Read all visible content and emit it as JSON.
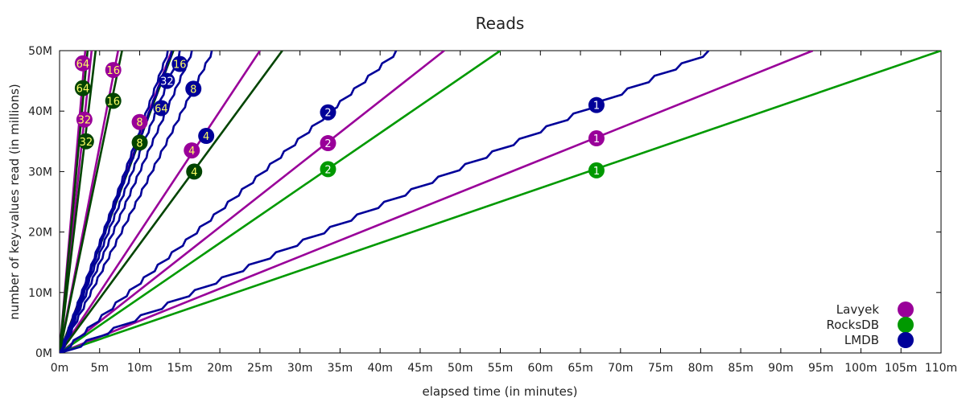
{
  "chart_data": {
    "type": "line",
    "title": "Reads",
    "xlabel": "elapsed time (in minutes)",
    "ylabel": "number of key-values read (in millions)",
    "xlim": [
      0,
      110
    ],
    "ylim": [
      0,
      50
    ],
    "x_ticks": [
      0,
      5,
      10,
      15,
      20,
      25,
      30,
      35,
      40,
      45,
      50,
      55,
      60,
      65,
      70,
      75,
      80,
      85,
      90,
      95,
      100,
      105,
      110
    ],
    "x_tick_labels": [
      "0m",
      "5m",
      "10m",
      "15m",
      "20m",
      "25m",
      "30m",
      "35m",
      "40m",
      "45m",
      "50m",
      "55m",
      "60m",
      "65m",
      "70m",
      "75m",
      "80m",
      "85m",
      "90m",
      "95m",
      "100m",
      "105m",
      "110m"
    ],
    "y_ticks": [
      0,
      10,
      20,
      30,
      40,
      50
    ],
    "y_tick_labels": [
      "0M",
      "10M",
      "20M",
      "30M",
      "40M",
      "50M"
    ],
    "legend_position": "bottom-right",
    "legend": [
      {
        "name": "Lavyek",
        "color": "#990099"
      },
      {
        "name": "RocksDB",
        "color": "#009900"
      },
      {
        "name": "LMDB",
        "color": "#000099"
      }
    ],
    "series": [
      {
        "db": "Lavyek",
        "threads": "1",
        "color": "#990099",
        "label_color": "#ffffff",
        "points": [
          [
            0,
            0
          ],
          [
            94,
            50
          ]
        ],
        "marker": [
          67,
          35.5
        ]
      },
      {
        "db": "Lavyek",
        "threads": "2",
        "color": "#990099",
        "label_color": "#ffffff",
        "points": [
          [
            0,
            0
          ],
          [
            48,
            50
          ]
        ],
        "marker": [
          33.5,
          34.7
        ]
      },
      {
        "db": "Lavyek",
        "threads": "4",
        "color": "#990099",
        "label_color": "#ffff66",
        "points": [
          [
            0,
            0
          ],
          [
            25,
            50
          ]
        ],
        "marker": [
          16.5,
          33.5
        ]
      },
      {
        "db": "Lavyek",
        "threads": "8",
        "color": "#990099",
        "label_color": "#ffff66",
        "points": [
          [
            0,
            0
          ],
          [
            14,
            50
          ]
        ],
        "marker": [
          10,
          38.2
        ]
      },
      {
        "db": "Lavyek",
        "threads": "16",
        "color": "#990099",
        "label_color": "#ffff66",
        "points": [
          [
            0,
            0
          ],
          [
            7.3,
            50
          ]
        ],
        "marker": [
          6.7,
          46.8
        ]
      },
      {
        "db": "Lavyek",
        "threads": "32",
        "color": "#990099",
        "label_color": "#ffff66",
        "points": [
          [
            0,
            0
          ],
          [
            4,
            50
          ]
        ],
        "marker": [
          3.1,
          38.6
        ]
      },
      {
        "db": "Lavyek",
        "threads": "64",
        "color": "#990099",
        "label_color": "#ffff66",
        "points": [
          [
            0,
            0
          ],
          [
            3.2,
            50
          ]
        ],
        "marker": [
          2.9,
          47.9
        ]
      },
      {
        "db": "RocksDB",
        "threads": "1",
        "color": "#009900",
        "label_color": "#ffffff",
        "points": [
          [
            0,
            0
          ],
          [
            110,
            50
          ]
        ],
        "marker": [
          67,
          30.2
        ]
      },
      {
        "db": "RocksDB",
        "threads": "2",
        "color": "#009900",
        "label_color": "#ffffff",
        "points": [
          [
            0,
            0
          ],
          [
            55,
            50
          ]
        ],
        "marker": [
          33.5,
          30.4
        ]
      },
      {
        "db": "RocksDB",
        "threads": "4",
        "color": "#004400",
        "label_color": "#ffff66",
        "points": [
          [
            0,
            0
          ],
          [
            27.8,
            50
          ]
        ],
        "marker": [
          16.8,
          30
        ]
      },
      {
        "db": "RocksDB",
        "threads": "8",
        "color": "#004400",
        "label_color": "#ffff66",
        "points": [
          [
            0,
            0
          ],
          [
            14.2,
            50
          ]
        ],
        "marker": [
          10,
          34.8
        ]
      },
      {
        "db": "RocksDB",
        "threads": "16",
        "color": "#004400",
        "label_color": "#ffff66",
        "points": [
          [
            0,
            0
          ],
          [
            7.8,
            50
          ]
        ],
        "marker": [
          6.7,
          41.7
        ]
      },
      {
        "db": "RocksDB",
        "threads": "32",
        "color": "#004400",
        "label_color": "#ffff66",
        "points": [
          [
            0,
            0
          ],
          [
            4.5,
            50
          ]
        ],
        "marker": [
          3.3,
          35
        ]
      },
      {
        "db": "RocksDB",
        "threads": "64",
        "color": "#004400",
        "label_color": "#ffff66",
        "points": [
          [
            0,
            0
          ],
          [
            3.5,
            50
          ]
        ],
        "marker": [
          2.9,
          43.8
        ]
      },
      {
        "db": "LMDB",
        "threads": "1",
        "color": "#000099",
        "label_color": "#ffffff",
        "points": [
          [
            0,
            0
          ],
          [
            81,
            50
          ]
        ],
        "marker": [
          67,
          41
        ]
      },
      {
        "db": "LMDB",
        "threads": "2",
        "color": "#000099",
        "label_color": "#ffffff",
        "points": [
          [
            0,
            0
          ],
          [
            42,
            50
          ]
        ],
        "marker": [
          33.5,
          39.8
        ]
      },
      {
        "db": "LMDB",
        "threads": "4",
        "color": "#000099",
        "label_color": "#ffff66",
        "points": [
          [
            0,
            0
          ],
          [
            19,
            50
          ]
        ],
        "marker": [
          18.3,
          35.9
        ]
      },
      {
        "db": "LMDB",
        "threads": "8",
        "color": "#000099",
        "label_color": "#ffff66",
        "points": [
          [
            0,
            0
          ],
          [
            16.5,
            50
          ]
        ],
        "marker": [
          16.7,
          43.7
        ]
      },
      {
        "db": "LMDB",
        "threads": "16",
        "color": "#000099",
        "label_color": "#ffff66",
        "points": [
          [
            0,
            0
          ],
          [
            15,
            50
          ]
        ],
        "marker": [
          15,
          47.8
        ]
      },
      {
        "db": "LMDB",
        "threads": "32",
        "color": "#000099",
        "label_color": "#ffffff",
        "points": [
          [
            0,
            0
          ],
          [
            14,
            50
          ]
        ],
        "marker": [
          13.4,
          45
        ]
      },
      {
        "db": "LMDB",
        "threads": "64",
        "color": "#000099",
        "label_color": "#ffff66",
        "points": [
          [
            0,
            0
          ],
          [
            13.5,
            50
          ]
        ],
        "marker": [
          12.7,
          40.5
        ]
      }
    ]
  }
}
